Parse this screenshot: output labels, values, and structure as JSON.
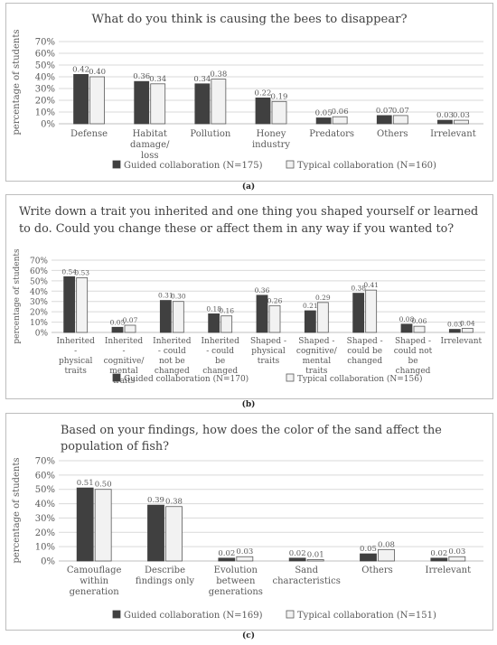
{
  "colors": {
    "guided": "#404040",
    "typical": "#f2f2f2",
    "outline": "#595959",
    "grid": "#d9d9d9"
  },
  "chart_data": [
    {
      "type": "bar",
      "title": "What do you think is causing the bees to disappear?",
      "ylabel": "percentage of students",
      "ylim": [
        0,
        0.7
      ],
      "yticks": [
        "0%",
        "10%",
        "20%",
        "30%",
        "40%",
        "50%",
        "60%",
        "70%"
      ],
      "categories": [
        "Defense",
        "Habitat damage/ loss",
        "Pollution",
        "Honey industry",
        "Predators",
        "Others",
        "Irrelevant"
      ],
      "series": [
        {
          "name": "Guided collaboration (N=175)",
          "values": [
            0.42,
            0.36,
            0.34,
            0.22,
            0.05,
            0.07,
            0.03
          ],
          "labels": [
            "0.42",
            "0.36",
            "0.34",
            "0.22",
            "0.05",
            "0.07",
            "0.03"
          ]
        },
        {
          "name": "Typical collaboration (N=160)",
          "values": [
            0.4,
            0.34,
            0.38,
            0.19,
            0.06,
            0.07,
            0.03
          ],
          "labels": [
            "0.40",
            "0.34",
            "0.38",
            "0.19",
            "0.06",
            "0.07",
            "0.03"
          ]
        }
      ],
      "legend": "bottom",
      "sublabel": "(a)"
    },
    {
      "type": "bar",
      "title": "Write down a trait you inherited and one thing you shaped yourself or learned to do. Could you change these or affect them in any way if you wanted to?",
      "ylabel": "percentage of students",
      "ylim": [
        0,
        0.7
      ],
      "yticks": [
        "0%",
        "10%",
        "20%",
        "30%",
        "40%",
        "50%",
        "60%",
        "70%"
      ],
      "categories": [
        "Inherited - physical traits",
        "Inherited - cognitive/ mental traits",
        "Inherited - could not be changed",
        "Inherited - could be changed",
        "Shaped - physical traits",
        "Shaped - cognitive/ mental traits",
        "Shaped - could be changed",
        "Shaped - could not be changed",
        "Irrelevant"
      ],
      "series": [
        {
          "name": "Guided collaboration (N=170)",
          "values": [
            0.54,
            0.05,
            0.31,
            0.18,
            0.36,
            0.21,
            0.38,
            0.08,
            0.03
          ],
          "labels": [
            "0.54",
            "0.05",
            "0.31",
            "0.18",
            "0.36",
            "0.21",
            "0.38",
            "0.08",
            "0.03"
          ]
        },
        {
          "name": "Typical collaboration (N=156)",
          "values": [
            0.53,
            0.07,
            0.3,
            0.16,
            0.26,
            0.29,
            0.41,
            0.06,
            0.04
          ],
          "labels": [
            "0.53",
            "0.07",
            "0.30",
            "0.16",
            "0.26",
            "0.29",
            "0.41",
            "0.06",
            "0.04"
          ]
        }
      ],
      "legend": "bottom",
      "sublabel": "(b)"
    },
    {
      "type": "bar",
      "title": "Based on your findings, how does the color of the sand affect the population of fish?",
      "ylabel": "percentage of students",
      "ylim": [
        0,
        0.7
      ],
      "yticks": [
        "0%",
        "10%",
        "20%",
        "30%",
        "40%",
        "50%",
        "60%",
        "70%"
      ],
      "categories": [
        "Camouflage within generation",
        "Describe findings only",
        "Evolution between generations",
        "Sand characteristics",
        "Others",
        "Irrelevant"
      ],
      "series": [
        {
          "name": "Guided collaboration (N=169)",
          "values": [
            0.51,
            0.39,
            0.02,
            0.02,
            0.05,
            0.02
          ],
          "labels": [
            "0.51",
            "0.39",
            "0.02",
            "0.02",
            "0.05",
            "0.02"
          ]
        },
        {
          "name": "Typical collaboration (N=151)",
          "values": [
            0.5,
            0.38,
            0.03,
            0.01,
            0.08,
            0.03
          ],
          "labels": [
            "0.50",
            "0.38",
            "0.03",
            "0.01",
            "0.08",
            "0.03"
          ]
        }
      ],
      "legend": "bottom",
      "sublabel": "(c)"
    }
  ]
}
